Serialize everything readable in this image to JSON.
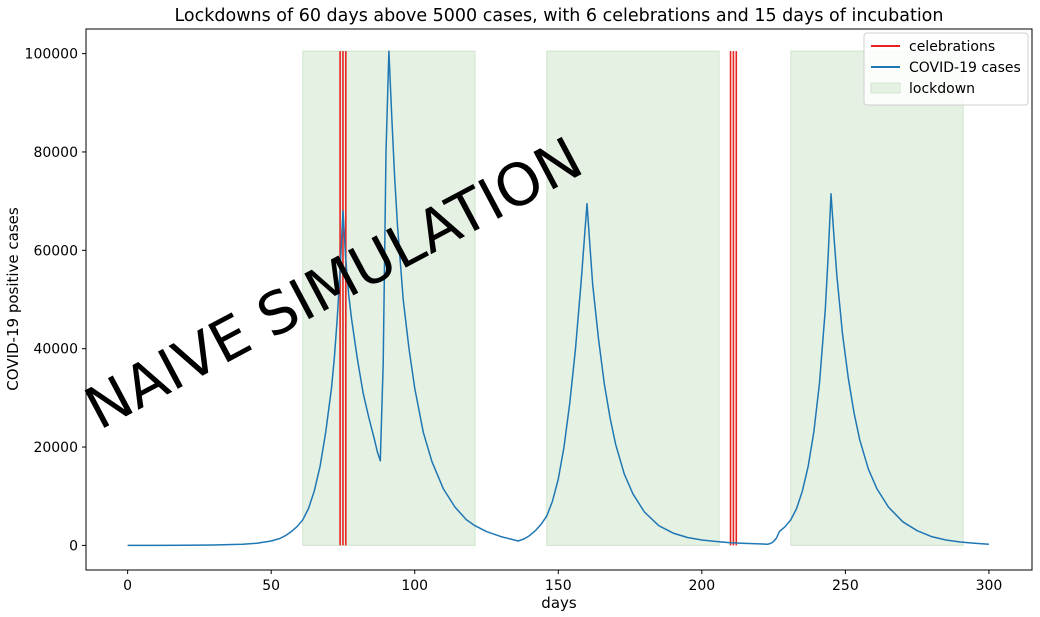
{
  "chart_data": {
    "type": "line",
    "title": "Lockdowns of 60 days above 5000 cases, with 6 celebrations and 15 days of incubation",
    "xlabel": "days",
    "ylabel": "COVID-19 positive cases",
    "xlim": [
      -14.5,
      315
    ],
    "ylim": [
      -5000,
      105000
    ],
    "x_ticks": [
      0,
      50,
      100,
      150,
      200,
      250,
      300
    ],
    "y_ticks": [
      0,
      20000,
      40000,
      60000,
      80000,
      100000
    ],
    "legend_position": "top-right",
    "watermark": "NAIVE SIMULATION",
    "colors": {
      "cases": "#1f77b4",
      "celebrations": "#e8231f",
      "lockdown_fill": "#e5f1e3",
      "lockdown_edge": "#cfe5cc",
      "watermark": "#f2ded0"
    },
    "legend": [
      {
        "label": "celebrations",
        "kind": "line",
        "color": "#e8231f"
      },
      {
        "label": "COVID-19 cases",
        "kind": "line",
        "color": "#1f77b4"
      },
      {
        "label": "lockdown",
        "kind": "patch",
        "color": "#e5f1e3"
      }
    ],
    "lockdowns": [
      {
        "start": 61,
        "end": 121,
        "top": 100500
      },
      {
        "start": 146,
        "end": 206,
        "top": 100500
      },
      {
        "start": 231,
        "end": 291,
        "top": 100500
      }
    ],
    "celebrations": [
      74,
      75,
      76,
      210,
      211,
      212
    ],
    "celebration_top": 100500,
    "series": [
      {
        "name": "COVID-19 cases",
        "points": [
          [
            0,
            0
          ],
          [
            10,
            5
          ],
          [
            20,
            30
          ],
          [
            30,
            80
          ],
          [
            40,
            250
          ],
          [
            45,
            450
          ],
          [
            50,
            900
          ],
          [
            53,
            1400
          ],
          [
            55,
            2000
          ],
          [
            57,
            2800
          ],
          [
            59,
            3800
          ],
          [
            61,
            5200
          ],
          [
            63,
            7500
          ],
          [
            65,
            11000
          ],
          [
            67,
            16000
          ],
          [
            69,
            23000
          ],
          [
            71,
            32000
          ],
          [
            72,
            38000
          ],
          [
            73,
            46000
          ],
          [
            74,
            56000
          ],
          [
            75,
            68000
          ],
          [
            76,
            58000
          ],
          [
            77,
            51000
          ],
          [
            78,
            46000
          ],
          [
            80,
            38000
          ],
          [
            82,
            31000
          ],
          [
            84,
            26000
          ],
          [
            86,
            21500
          ],
          [
            87,
            19000
          ],
          [
            88,
            17200
          ],
          [
            89,
            37000
          ],
          [
            90,
            80000
          ],
          [
            91,
            100500
          ],
          [
            92,
            87000
          ],
          [
            93,
            75000
          ],
          [
            94,
            65000
          ],
          [
            96,
            50000
          ],
          [
            98,
            40000
          ],
          [
            100,
            32000
          ],
          [
            103,
            23000
          ],
          [
            106,
            17000
          ],
          [
            110,
            11500
          ],
          [
            114,
            7800
          ],
          [
            118,
            5200
          ],
          [
            121,
            4000
          ],
          [
            125,
            2800
          ],
          [
            130,
            1800
          ],
          [
            134,
            1200
          ],
          [
            136,
            900
          ],
          [
            138,
            1300
          ],
          [
            140,
            2000
          ],
          [
            142,
            3000
          ],
          [
            144,
            4300
          ],
          [
            146,
            6000
          ],
          [
            148,
            9000
          ],
          [
            150,
            13500
          ],
          [
            152,
            20000
          ],
          [
            154,
            29000
          ],
          [
            156,
            40000
          ],
          [
            158,
            54000
          ],
          [
            160,
            69500
          ],
          [
            161,
            61000
          ],
          [
            162,
            53000
          ],
          [
            164,
            42000
          ],
          [
            166,
            33000
          ],
          [
            168,
            26000
          ],
          [
            170,
            20500
          ],
          [
            173,
            14500
          ],
          [
            176,
            10500
          ],
          [
            180,
            6800
          ],
          [
            185,
            4000
          ],
          [
            190,
            2500
          ],
          [
            195,
            1600
          ],
          [
            200,
            1100
          ],
          [
            205,
            800
          ],
          [
            210,
            550
          ],
          [
            215,
            400
          ],
          [
            220,
            300
          ],
          [
            223,
            250
          ],
          [
            224,
            400
          ],
          [
            225,
            800
          ],
          [
            226,
            1500
          ],
          [
            227,
            2800
          ],
          [
            229,
            3800
          ],
          [
            231,
            5200
          ],
          [
            233,
            7500
          ],
          [
            235,
            11000
          ],
          [
            237,
            16000
          ],
          [
            239,
            23000
          ],
          [
            241,
            33000
          ],
          [
            243,
            48000
          ],
          [
            244,
            59000
          ],
          [
            245,
            71500
          ],
          [
            246,
            63000
          ],
          [
            247,
            55000
          ],
          [
            249,
            43000
          ],
          [
            251,
            34000
          ],
          [
            253,
            27000
          ],
          [
            255,
            21500
          ],
          [
            258,
            15500
          ],
          [
            261,
            11500
          ],
          [
            265,
            7800
          ],
          [
            270,
            4800
          ],
          [
            275,
            3000
          ],
          [
            280,
            1800
          ],
          [
            285,
            1100
          ],
          [
            290,
            700
          ],
          [
            295,
            450
          ],
          [
            300,
            250
          ]
        ]
      }
    ]
  }
}
